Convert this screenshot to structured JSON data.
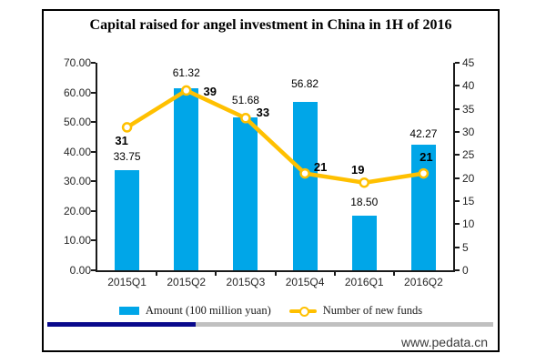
{
  "title": "Capital raised for angel investment in China in 1H of 2016",
  "footer": {
    "website": "www.pedata.cn"
  },
  "colors": {
    "bar_blue": "#00A6E8",
    "line_gold": "#FFC000",
    "marker_fill": "#FFFFFF",
    "divider_navy": "#0A0A8C",
    "divider_gray": "#C0C0C0",
    "axis": "#1a1a1a"
  },
  "chart_data": {
    "type": "bar",
    "subtype": "bar-line-combo",
    "categories": [
      "2015Q1",
      "2015Q2",
      "2015Q3",
      "2015Q4",
      "2016Q1",
      "2016Q2"
    ],
    "series": [
      {
        "name": "Amount (100 million yuan)",
        "type": "bar",
        "axis": "left",
        "color": "#00A6E8",
        "values": [
          33.75,
          61.32,
          51.68,
          56.82,
          18.5,
          42.27
        ],
        "labels": [
          "33.75",
          "61.32",
          "51.68",
          "56.82",
          "18.50",
          "42.27"
        ]
      },
      {
        "name": "Number of new funds",
        "type": "line",
        "axis": "right",
        "color": "#FFC000",
        "values": [
          31,
          39,
          33,
          21,
          19,
          21
        ],
        "labels": [
          "31",
          "39",
          "33",
          "21",
          "19",
          "21"
        ]
      }
    ],
    "left_axis": {
      "min": 0,
      "max": 70,
      "step": 10,
      "tick_labels": [
        "0.00",
        "10.00",
        "20.00",
        "30.00",
        "40.00",
        "50.00",
        "60.00",
        "70.00"
      ]
    },
    "right_axis": {
      "min": 0,
      "max": 45,
      "step": 5,
      "tick_labels": [
        "0",
        "5",
        "10",
        "15",
        "20",
        "25",
        "30",
        "35",
        "40",
        "45"
      ]
    },
    "grid": false,
    "legend_position": "bottom"
  }
}
